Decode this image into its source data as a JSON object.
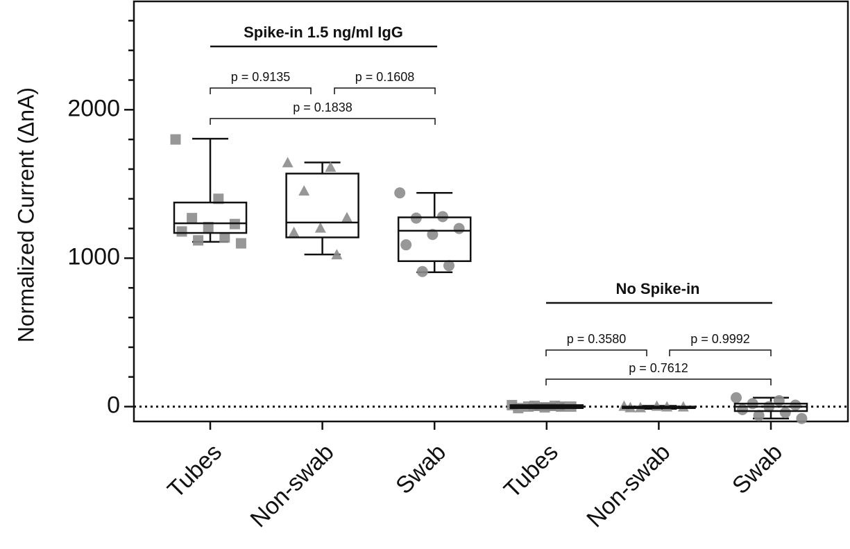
{
  "chart_data": {
    "type": "box",
    "y_label": "Normalized Current (ΔnA)",
    "categories": [
      "Tubes",
      "Non-swab",
      "Swab",
      "Tubes",
      "Non-swab",
      "Swab"
    ],
    "color": "#8c8c8c",
    "boxes": [
      {
        "marker": "square",
        "whisker_low": 1110,
        "q1": 1170,
        "median": 1235,
        "q3": 1375,
        "whisker_high": 1805,
        "points": [
          1800,
          1400,
          1270,
          1230,
          1210,
          1180,
          1140,
          1120,
          1100
        ]
      },
      {
        "marker": "triangle",
        "whisker_low": 1025,
        "q1": 1140,
        "median": 1240,
        "q3": 1570,
        "whisker_high": 1645,
        "points": [
          1640,
          1610,
          1450,
          1270,
          1200,
          1170,
          1020
        ]
      },
      {
        "marker": "circle",
        "whisker_low": 905,
        "q1": 980,
        "median": 1185,
        "q3": 1275,
        "whisker_high": 1440,
        "points": [
          1440,
          1280,
          1270,
          1200,
          1160,
          1090,
          950,
          910
        ]
      },
      {
        "marker": "square",
        "whisker_low": -20,
        "q1": -10,
        "median": 0,
        "q3": 10,
        "whisker_high": 20,
        "points": [
          10,
          5,
          0,
          0,
          -5,
          -10,
          0,
          5
        ]
      },
      {
        "marker": "triangle",
        "whisker_low": -15,
        "q1": -10,
        "median": -5,
        "q3": 0,
        "whisker_high": 5,
        "points": [
          0,
          -5,
          -10,
          -5,
          0,
          -10
        ]
      },
      {
        "marker": "circle",
        "whisker_low": -80,
        "q1": -30,
        "median": 0,
        "q3": 20,
        "whisker_high": 60,
        "points": [
          60,
          40,
          20,
          10,
          0,
          -20,
          -40,
          -60,
          -80
        ]
      }
    ],
    "group_labels": [
      "Spike-in 1.5 ng/ml  IgG",
      "No Spike-in"
    ],
    "annotations": [
      "p = 0.9135",
      "p = 0.1608",
      "p = 0.1838",
      "p = 0.3580",
      "p = 0.9992",
      "p = 0.7612"
    ],
    "reference_line": 0,
    "ylim": [
      -100,
      2730
    ],
    "yticks": [
      0,
      1000,
      2000
    ],
    "yminorticks": [
      200,
      400,
      600,
      800,
      1200,
      1400,
      1600,
      1800,
      2200,
      2400,
      2600
    ]
  }
}
